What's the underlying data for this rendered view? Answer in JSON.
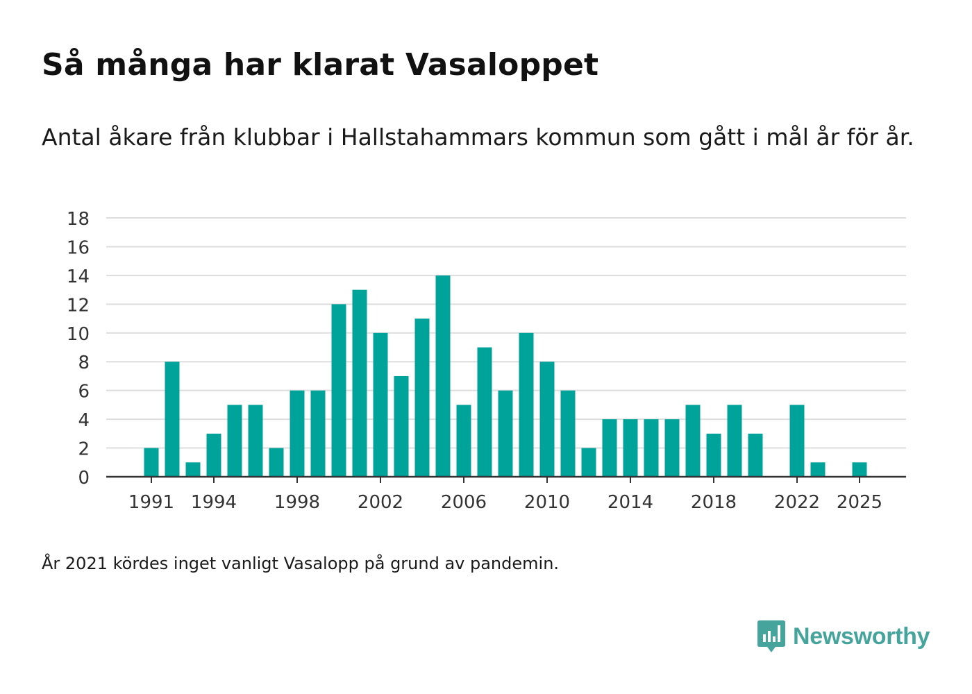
{
  "header": {
    "title": "Så många har klarat Vasaloppet",
    "subtitle": "Antal åkare från klubbar i Hallstahammars kommun som gått i mål år för år."
  },
  "footer": {
    "note": "År 2021 kördes inget vanligt Vasalopp på grund av pandemin.",
    "logo_text": "Newsworthy",
    "logo_icon": "newsworthy-chart-bubble-icon"
  },
  "colors": {
    "bar": "#00a39a",
    "grid": "#dddddd",
    "axis": "#333333",
    "logo": "#45a49c"
  },
  "chart_data": {
    "type": "bar",
    "title": "Så många har klarat Vasaloppet",
    "subtitle": "Antal åkare från klubbar i Hallstahammars kommun som gått i mål år för år.",
    "xlabel": "",
    "ylabel": "",
    "ylim": [
      0,
      18
    ],
    "yticks": [
      0,
      2,
      4,
      6,
      8,
      10,
      12,
      14,
      16,
      18
    ],
    "xticks": [
      1991,
      1994,
      1998,
      2002,
      2006,
      2010,
      2014,
      2018,
      2022,
      2025
    ],
    "xrange": [
      1989,
      2026
    ],
    "grid": true,
    "legend": "none",
    "categories": [
      1991,
      1992,
      1993,
      1994,
      1995,
      1996,
      1997,
      1998,
      1999,
      2000,
      2001,
      2002,
      2003,
      2004,
      2005,
      2006,
      2007,
      2008,
      2009,
      2010,
      2011,
      2012,
      2013,
      2014,
      2015,
      2016,
      2017,
      2018,
      2019,
      2020,
      2021,
      2022,
      2023,
      2024,
      2025
    ],
    "values": [
      2,
      8,
      1,
      3,
      5,
      5,
      2,
      6,
      6,
      12,
      13,
      10,
      7,
      11,
      14,
      5,
      9,
      6,
      10,
      8,
      6,
      2,
      4,
      4,
      4,
      4,
      5,
      3,
      5,
      3,
      0,
      5,
      1,
      0,
      1
    ]
  }
}
